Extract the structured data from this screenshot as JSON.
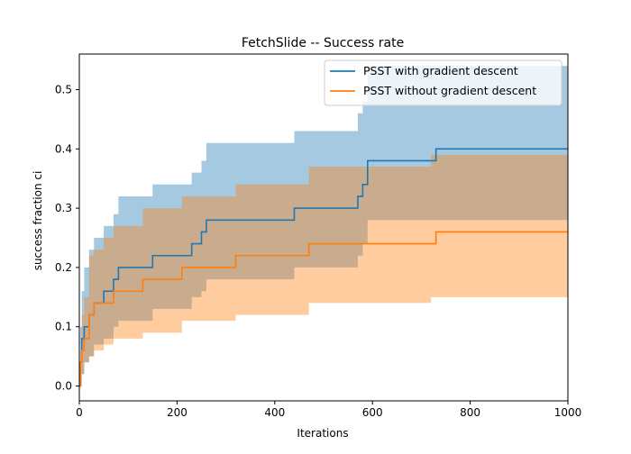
{
  "chart_data": {
    "type": "line",
    "title": "FetchSlide -- Success rate",
    "xlabel": "Iterations",
    "ylabel": "success fraction ci",
    "xlim": [
      0,
      1000
    ],
    "ylim": [
      -0.025,
      0.56
    ],
    "xticks": [
      0,
      200,
      400,
      600,
      800,
      1000
    ],
    "yticks": [
      0.0,
      0.1,
      0.2,
      0.3,
      0.4,
      0.5
    ],
    "grid": false,
    "legend_position": "top-right",
    "series": [
      {
        "name": "PSST with gradient descent",
        "color": "#1f77b4",
        "band_color": "#1f77b4",
        "band_opacity": 0.4,
        "x": [
          0,
          2,
          5,
          10,
          20,
          30,
          50,
          70,
          80,
          150,
          230,
          250,
          260,
          440,
          570,
          580,
          590,
          730,
          1000
        ],
        "y": [
          0.0,
          0.04,
          0.08,
          0.1,
          0.12,
          0.14,
          0.16,
          0.18,
          0.2,
          0.22,
          0.24,
          0.26,
          0.28,
          0.3,
          0.32,
          0.34,
          0.38,
          0.4,
          0.4
        ],
        "lower": [
          0.0,
          0.0,
          0.02,
          0.04,
          0.05,
          0.07,
          0.08,
          0.1,
          0.11,
          0.13,
          0.15,
          0.16,
          0.18,
          0.2,
          0.22,
          0.24,
          0.28,
          0.28,
          0.28
        ],
        "upper": [
          0.04,
          0.1,
          0.16,
          0.2,
          0.23,
          0.25,
          0.27,
          0.29,
          0.32,
          0.34,
          0.36,
          0.38,
          0.41,
          0.43,
          0.46,
          0.48,
          0.54,
          0.54,
          0.54
        ]
      },
      {
        "name": "PSST without gradient descent",
        "color": "#ff7f0e",
        "band_color": "#ff7f0e",
        "band_opacity": 0.4,
        "x": [
          0,
          2,
          5,
          10,
          20,
          30,
          50,
          70,
          130,
          210,
          320,
          470,
          720,
          730,
          1000
        ],
        "y": [
          0.0,
          0.04,
          0.06,
          0.08,
          0.12,
          0.14,
          0.14,
          0.16,
          0.18,
          0.2,
          0.22,
          0.24,
          0.24,
          0.26,
          0.26
        ],
        "lower": [
          0.0,
          0.0,
          0.02,
          0.04,
          0.05,
          0.06,
          0.07,
          0.08,
          0.09,
          0.11,
          0.12,
          0.14,
          0.15,
          0.15,
          0.15
        ],
        "upper": [
          0.04,
          0.06,
          0.12,
          0.15,
          0.22,
          0.23,
          0.25,
          0.27,
          0.3,
          0.32,
          0.34,
          0.37,
          0.39,
          0.39,
          0.39
        ]
      }
    ]
  }
}
